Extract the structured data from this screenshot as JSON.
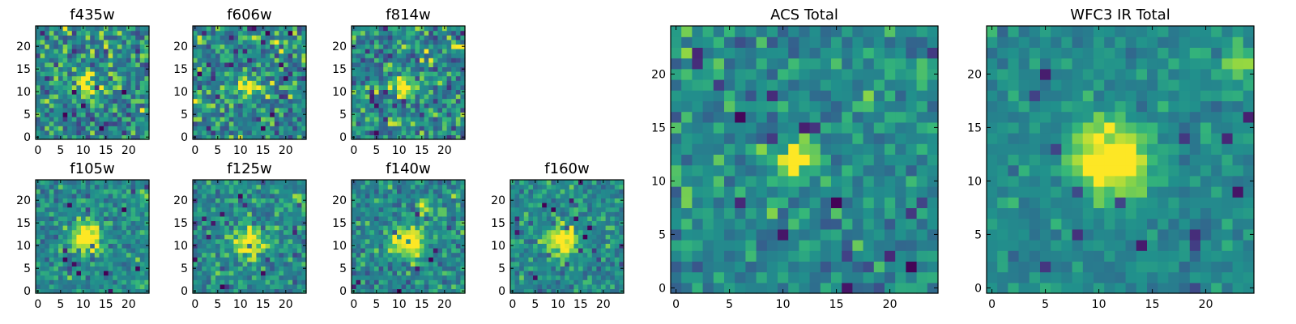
{
  "chart_data": [
    {
      "type": "heatmap",
      "title": "f435w",
      "grid_size": 25,
      "xticks": [
        "0",
        "5",
        "10",
        "15",
        "20"
      ],
      "yticks": [
        "0",
        "5",
        "10",
        "15",
        "20"
      ],
      "xlim": [
        0,
        25
      ],
      "ylim": [
        0,
        25
      ],
      "colormap": "viridis",
      "source": {
        "x": 11,
        "y": 12,
        "sigma": 1.6,
        "amp": 0.55
      },
      "extra": [],
      "noise": 0.33,
      "seed": 11
    },
    {
      "type": "heatmap",
      "title": "f606w",
      "grid_size": 25,
      "xticks": [
        "0",
        "5",
        "10",
        "15",
        "20"
      ],
      "yticks": [
        "0",
        "5",
        "10",
        "15",
        "20"
      ],
      "xlim": [
        0,
        25
      ],
      "ylim": [
        0,
        25
      ],
      "colormap": "viridis",
      "source": {
        "x": 12,
        "y": 11,
        "sigma": 1.6,
        "amp": 0.55
      },
      "extra": [
        {
          "x": 23,
          "y": 21,
          "sigma": 1.0,
          "amp": 0.35
        }
      ],
      "noise": 0.33,
      "seed": 23
    },
    {
      "type": "heatmap",
      "title": "f814w",
      "grid_size": 25,
      "xticks": [
        "0",
        "5",
        "10",
        "15",
        "20"
      ],
      "yticks": [
        "0",
        "5",
        "10",
        "15",
        "20"
      ],
      "xlim": [
        0,
        25
      ],
      "ylim": [
        0,
        25
      ],
      "colormap": "viridis",
      "source": {
        "x": 11,
        "y": 11,
        "sigma": 1.5,
        "amp": 0.5
      },
      "extra": [
        {
          "x": 23,
          "y": 20,
          "sigma": 1.0,
          "amp": 0.4
        }
      ],
      "noise": 0.34,
      "seed": 37
    },
    {
      "type": "heatmap",
      "title": "ACS Total",
      "grid_size": 25,
      "xticks": [
        "0",
        "5",
        "10",
        "15",
        "20"
      ],
      "yticks": [
        "0",
        "5",
        "10",
        "15",
        "20"
      ],
      "xlim": [
        0,
        25
      ],
      "ylim": [
        0,
        25
      ],
      "colormap": "viridis",
      "source": {
        "x": 11,
        "y": 12,
        "sigma": 1.3,
        "amp": 0.55
      },
      "extra": [
        {
          "x": 23,
          "y": 20,
          "sigma": 0.9,
          "amp": 0.4
        }
      ],
      "noise": 0.22,
      "seed": 51
    },
    {
      "type": "heatmap",
      "title": "f105w",
      "grid_size": 25,
      "xticks": [
        "0",
        "5",
        "10",
        "15",
        "20"
      ],
      "yticks": [
        "0",
        "5",
        "10",
        "15",
        "20"
      ],
      "xlim": [
        0,
        25
      ],
      "ylim": [
        0,
        25
      ],
      "colormap": "viridis",
      "source": {
        "x": 11,
        "y": 12,
        "sigma": 2.2,
        "amp": 0.6
      },
      "extra": [
        {
          "x": 23,
          "y": 21,
          "sigma": 1.0,
          "amp": 0.3
        }
      ],
      "noise": 0.22,
      "seed": 67
    },
    {
      "type": "heatmap",
      "title": "f125w",
      "grid_size": 25,
      "xticks": [
        "0",
        "5",
        "10",
        "15",
        "20"
      ],
      "yticks": [
        "0",
        "5",
        "10",
        "15",
        "20"
      ],
      "xlim": [
        0,
        25
      ],
      "ylim": [
        0,
        25
      ],
      "colormap": "viridis",
      "source": {
        "x": 12,
        "y": 11,
        "sigma": 2.2,
        "amp": 0.55
      },
      "extra": [
        {
          "x": 23,
          "y": 20,
          "sigma": 1.0,
          "amp": 0.3
        }
      ],
      "noise": 0.24,
      "seed": 79
    },
    {
      "type": "heatmap",
      "title": "f140w",
      "grid_size": 25,
      "xticks": [
        "0",
        "5",
        "10",
        "15",
        "20"
      ],
      "yticks": [
        "0",
        "5",
        "10",
        "15",
        "20"
      ],
      "xlim": [
        0,
        25
      ],
      "ylim": [
        0,
        25
      ],
      "colormap": "viridis",
      "source": {
        "x": 12,
        "y": 11,
        "sigma": 2.6,
        "amp": 0.55
      },
      "extra": [
        {
          "x": 15,
          "y": 19,
          "sigma": 1.2,
          "amp": 0.3
        }
      ],
      "noise": 0.24,
      "seed": 89
    },
    {
      "type": "heatmap",
      "title": "f160w",
      "grid_size": 25,
      "xticks": [
        "0",
        "5",
        "10",
        "15",
        "20"
      ],
      "yticks": [
        "0",
        "5",
        "10",
        "15",
        "20"
      ],
      "xlim": [
        0,
        25
      ],
      "ylim": [
        0,
        25
      ],
      "colormap": "viridis",
      "source": {
        "x": 11,
        "y": 11,
        "sigma": 2.4,
        "amp": 0.6
      },
      "extra": [],
      "noise": 0.22,
      "seed": 97
    },
    {
      "type": "heatmap",
      "title": "WFC3 IR Total",
      "grid_size": 25,
      "xticks": [
        "0",
        "5",
        "10",
        "15",
        "20"
      ],
      "yticks": [
        "0",
        "5",
        "10",
        "15",
        "20"
      ],
      "xlim": [
        0,
        25
      ],
      "ylim": [
        0,
        25
      ],
      "colormap": "viridis",
      "source": {
        "x": 11,
        "y": 12,
        "sigma": 2.4,
        "amp": 0.62
      },
      "extra": [
        {
          "x": 23,
          "y": 21,
          "sigma": 1.0,
          "amp": 0.35
        }
      ],
      "noise": 0.14,
      "seed": 113
    }
  ]
}
